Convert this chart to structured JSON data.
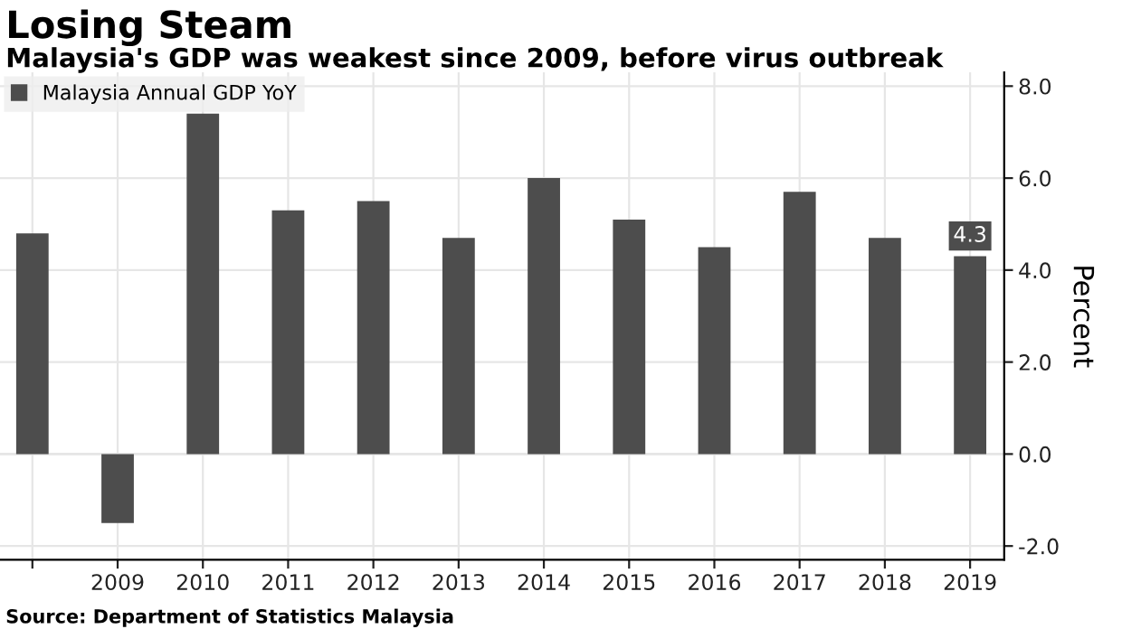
{
  "chart_data": {
    "type": "bar",
    "title": "Losing Steam",
    "subtitle": "Malaysia's GDP was weakest since 2009, before virus outbreak",
    "ylabel": "Percent",
    "categories": [
      null,
      "2009",
      "2010",
      "2011",
      "2012",
      "2013",
      "2014",
      "2015",
      "2016",
      "2017",
      "2018",
      "2019"
    ],
    "series": [
      {
        "name": "Malaysia Annual GDP YoY",
        "color": "#4d4d4d",
        "values": [
          4.8,
          -1.5,
          7.4,
          5.3,
          5.5,
          4.7,
          6.0,
          5.1,
          4.5,
          5.7,
          4.7,
          4.3
        ],
        "value_labels": [
          null,
          null,
          null,
          null,
          null,
          null,
          null,
          null,
          null,
          null,
          null,
          "4.3"
        ]
      }
    ],
    "ylim": [
      -2.3,
      8.3
    ],
    "yticks": [
      {
        "value": -2,
        "label": "-2.0"
      },
      {
        "value": 0,
        "label": "0.0"
      },
      {
        "value": 2,
        "label": "2.0"
      },
      {
        "value": 4,
        "label": "4.0"
      },
      {
        "value": 6,
        "label": "6.0"
      },
      {
        "value": 8,
        "label": "8.0"
      }
    ],
    "grid": true,
    "legend": "top left",
    "annotations": [
      "Source: Department of Statistics Malaysia"
    ]
  }
}
